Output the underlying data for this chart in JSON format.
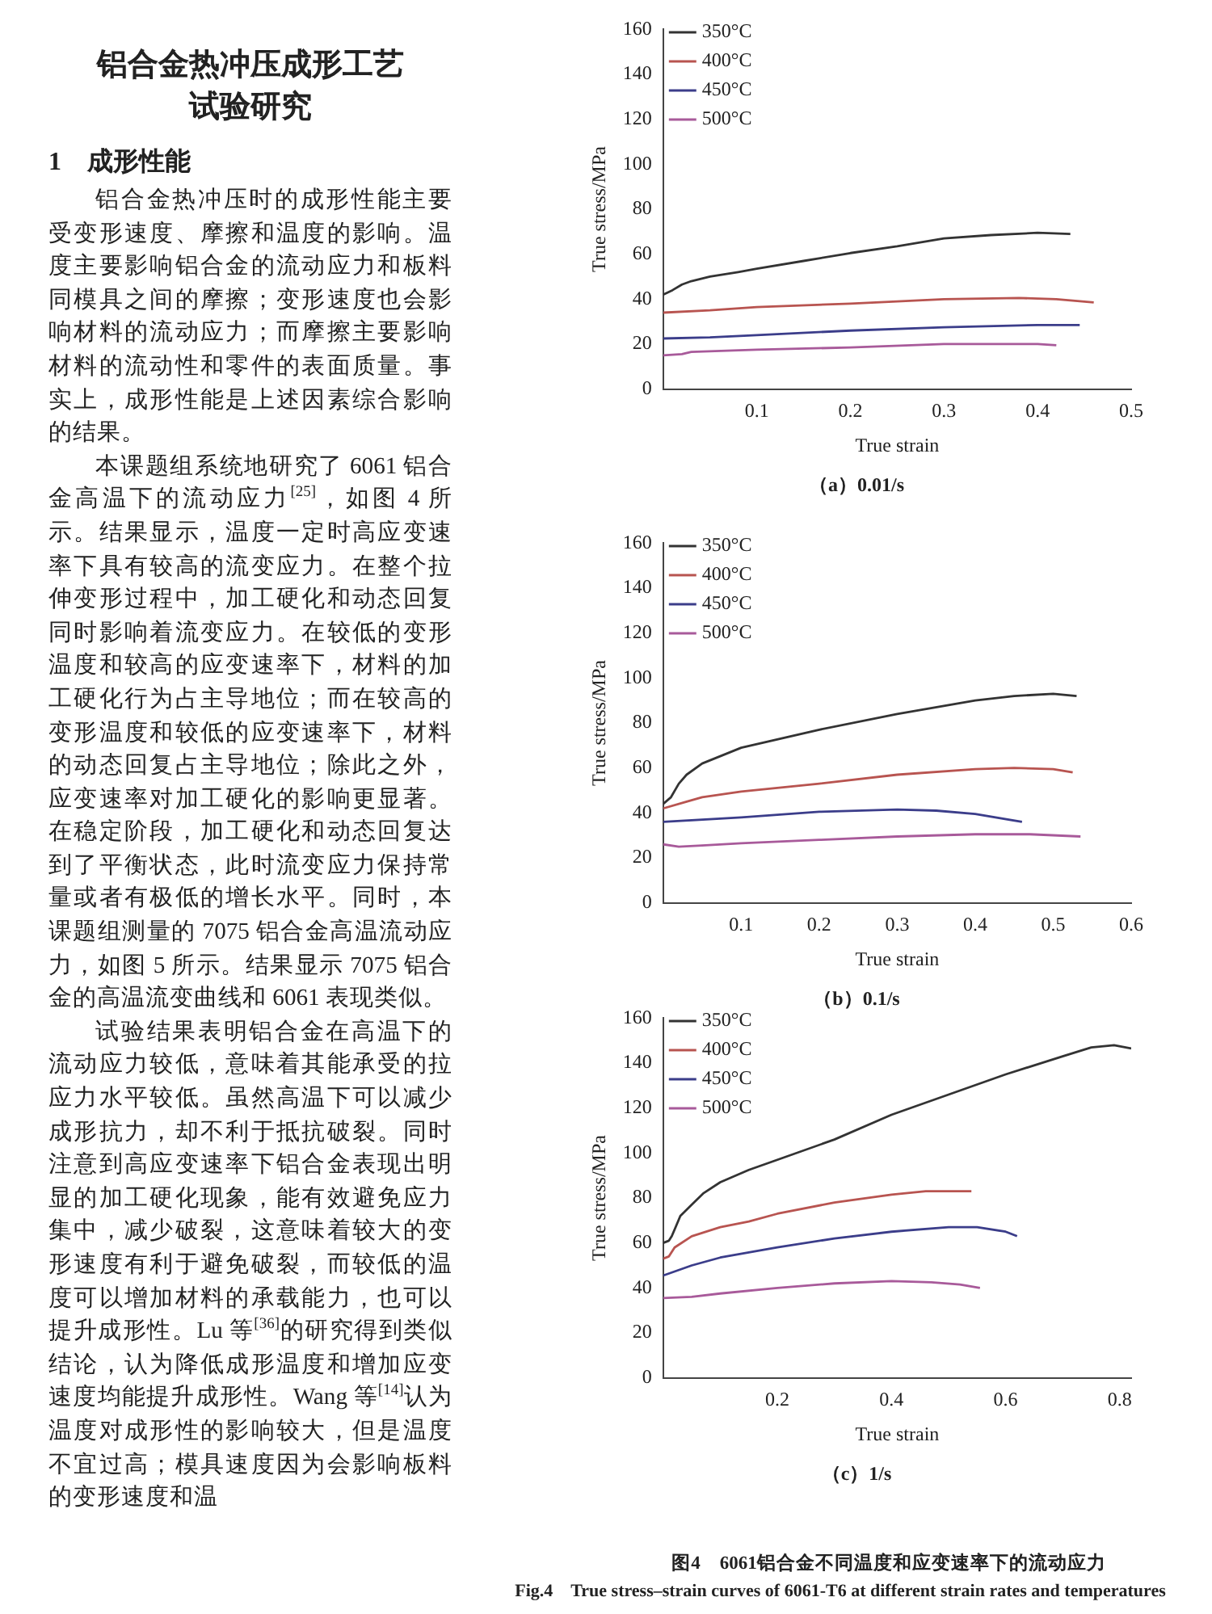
{
  "chart_data": [
    {
      "type": "other",
      "title": "铝合金热冲压成形工艺试验研究",
      "subtitle": "1　成形性能",
      "annotations": [
        "铝合金热冲压时的成形性能主要受变形速度、摩擦和温度的影响。温度主要影响铝合金的流动应力和板料同模具之间的摩擦；变形速度也会影响材料的流动应力；而摩擦主要影响材料的流动性和零件的表面质量。事实上，成形性能是上述因素综合影响的结果。",
        "本课题组系统地研究了 6061 铝合金高温下的流动应力$^{[25]}$，如图 4 所示。结果显示，温度一定时高应变速率下具有较高的流变应力。在整个拉伸变形过程中，加工硬化和动态回复同时影响着流变应力。在较低的变形温度和较高的应变速率下，材料的加工硬化行为占主导地位；而在较高的变形温度和较低的应变速率下，材料的动态回复占主导地位；除此之外，应变速率对加工硬化的影响更显著。在稳定阶段，加工硬化和动态回复达到了平衡状态，此时流变应力保持常量或者有极低的增长水平。同时，本课题组测量的 7075 铝合金高温流动应力，如图 5 所示。结果显示 7075 铝合金的高温流变曲线和 6061 表现类似。",
        "试验结果表明铝合金在高温下的流动应力较低，意味着其能承受的拉应力水平较低。虽然高温下可以减少成形抗力，却不利于抵抗破裂。同时注意到高应变速率下铝合金表现出明显的加工硬化现象，能有效避免应力集中，减少破裂，这意味着较大的变形速度有利于避免破裂，而较低的温度可以增加材料的承载能力，也可以提升成形性。Lu 等$^{[36]}$的研究得到类似结论，认为降低成形温度和增加应变速度均能提升成形性。Wang 等$^{[14]}$认为温度对成形性的影响较大，但是温度不宜过高；模具速度因为会影响板料的变形速度和温"
      ]
    },
    {
      "type": "line",
      "title": "（a）0.01/s",
      "xlabel": "True strain",
      "ylabel": "True stress/MPa",
      "xlim": [
        0,
        0.5
      ],
      "ylim": [
        0,
        160
      ],
      "xticks": [
        0.1,
        0.2,
        0.3,
        0.4,
        0.5
      ],
      "yticks": [
        0,
        20,
        40,
        60,
        80,
        100,
        120,
        140,
        160
      ],
      "legend": "top left",
      "grid": false,
      "marker": "none",
      "line_style": "solid",
      "series": [
        {
          "name": "350°C",
          "color": "#333333",
          "x": [
            0,
            0.01,
            0.02,
            0.03,
            0.05,
            0.08,
            0.1,
            0.15,
            0.2,
            0.25,
            0.3,
            0.35,
            0.4,
            0.435
          ],
          "values": [
            42,
            44,
            46.5,
            48,
            50,
            52,
            53.5,
            57,
            60.5,
            63.5,
            67,
            68.5,
            69.5,
            69
          ]
        },
        {
          "name": "400°C",
          "color": "#b85450",
          "x": [
            0,
            0.05,
            0.1,
            0.2,
            0.3,
            0.38,
            0.42,
            0.46
          ],
          "values": [
            34,
            35,
            36.5,
            38,
            40,
            40.5,
            40,
            38.5
          ]
        },
        {
          "name": "450°C",
          "color": "#3b3d8a",
          "x": [
            0,
            0.05,
            0.1,
            0.2,
            0.3,
            0.4,
            0.445
          ],
          "values": [
            22.5,
            23,
            24,
            26,
            27.5,
            28.5,
            28.5
          ]
        },
        {
          "name": "500°C",
          "color": "#a85a9a",
          "x": [
            0,
            0.02,
            0.03,
            0.1,
            0.2,
            0.3,
            0.4,
            0.42
          ],
          "values": [
            15,
            15.5,
            16.5,
            17.5,
            18.5,
            20,
            20,
            19.5
          ]
        }
      ]
    },
    {
      "type": "line",
      "title": "（b）0.1/s",
      "xlabel": "True strain",
      "ylabel": "True stress/MPa",
      "xlim": [
        0,
        0.6
      ],
      "ylim": [
        0,
        160
      ],
      "xticks": [
        0.1,
        0.2,
        0.3,
        0.4,
        0.5,
        0.6
      ],
      "yticks": [
        0,
        20,
        40,
        60,
        80,
        100,
        120,
        140,
        160
      ],
      "legend": "top left",
      "grid": false,
      "marker": "none",
      "line_style": "solid",
      "series": [
        {
          "name": "350°C",
          "color": "#333333",
          "x": [
            0,
            0.01,
            0.02,
            0.03,
            0.05,
            0.1,
            0.2,
            0.3,
            0.4,
            0.45,
            0.5,
            0.53
          ],
          "values": [
            44,
            47,
            53,
            57,
            62,
            69,
            77,
            84,
            90,
            92,
            93,
            92
          ]
        },
        {
          "name": "400°C",
          "color": "#b85450",
          "x": [
            0,
            0.03,
            0.05,
            0.1,
            0.2,
            0.3,
            0.4,
            0.45,
            0.5,
            0.525
          ],
          "values": [
            42,
            45,
            47,
            49.5,
            53,
            57,
            59.5,
            60,
            59.5,
            58
          ]
        },
        {
          "name": "450°C",
          "color": "#3b3d8a",
          "x": [
            0,
            0.1,
            0.2,
            0.3,
            0.35,
            0.4,
            0.46
          ],
          "values": [
            36,
            38,
            40.5,
            41.5,
            41,
            39.5,
            36
          ]
        },
        {
          "name": "500°C",
          "color": "#a85a9a",
          "x": [
            0,
            0.02,
            0.05,
            0.1,
            0.2,
            0.3,
            0.4,
            0.47,
            0.535
          ],
          "values": [
            26,
            25,
            25.5,
            26.5,
            28,
            29.5,
            30.5,
            30.5,
            29.5
          ]
        }
      ]
    },
    {
      "type": "line",
      "title": "（c）1/s",
      "xlabel": "True strain",
      "ylabel": "True stress/MPa",
      "xlim": [
        0,
        0.82
      ],
      "ylim": [
        0,
        160
      ],
      "xticks": [
        0.2,
        0.4,
        0.6,
        0.8
      ],
      "yticks": [
        0,
        20,
        40,
        60,
        80,
        100,
        120,
        140,
        160
      ],
      "legend": "top left",
      "grid": false,
      "marker": "none",
      "line_style": "solid",
      "annotations": [
        "图4　6061铝合金不同温度和应变速率下的流动应力",
        "Fig.4　True stress–strain curves of 6061-T6 at different strain rates and temperatures"
      ],
      "series": [
        {
          "name": "350°C",
          "color": "#333333",
          "x": [
            0,
            0.01,
            0.015,
            0.02,
            0.03,
            0.05,
            0.07,
            0.1,
            0.15,
            0.2,
            0.3,
            0.4,
            0.5,
            0.6,
            0.7,
            0.75,
            0.79,
            0.82
          ],
          "values": [
            60,
            61,
            63,
            66,
            72,
            77,
            82,
            87,
            92.5,
            97,
            106,
            117,
            126,
            135,
            143,
            147,
            148,
            146.5
          ]
        },
        {
          "name": "400°C",
          "color": "#b85450",
          "x": [
            0,
            0.01,
            0.02,
            0.05,
            0.1,
            0.15,
            0.2,
            0.3,
            0.4,
            0.46,
            0.54
          ],
          "values": [
            53,
            54,
            58,
            63,
            67,
            69.5,
            73,
            78,
            81.5,
            83,
            83
          ]
        },
        {
          "name": "450°C",
          "color": "#3b3d8a",
          "x": [
            0,
            0.05,
            0.1,
            0.2,
            0.3,
            0.4,
            0.5,
            0.55,
            0.6,
            0.62
          ],
          "values": [
            45.5,
            50,
            53.5,
            58,
            62,
            65,
            67,
            67,
            65,
            63
          ]
        },
        {
          "name": "500°C",
          "color": "#a85a9a",
          "x": [
            0,
            0.05,
            0.1,
            0.2,
            0.3,
            0.4,
            0.47,
            0.52,
            0.555
          ],
          "values": [
            35.5,
            36,
            37.5,
            40,
            42,
            43,
            42.5,
            41.5,
            40
          ]
        }
      ]
    }
  ]
}
